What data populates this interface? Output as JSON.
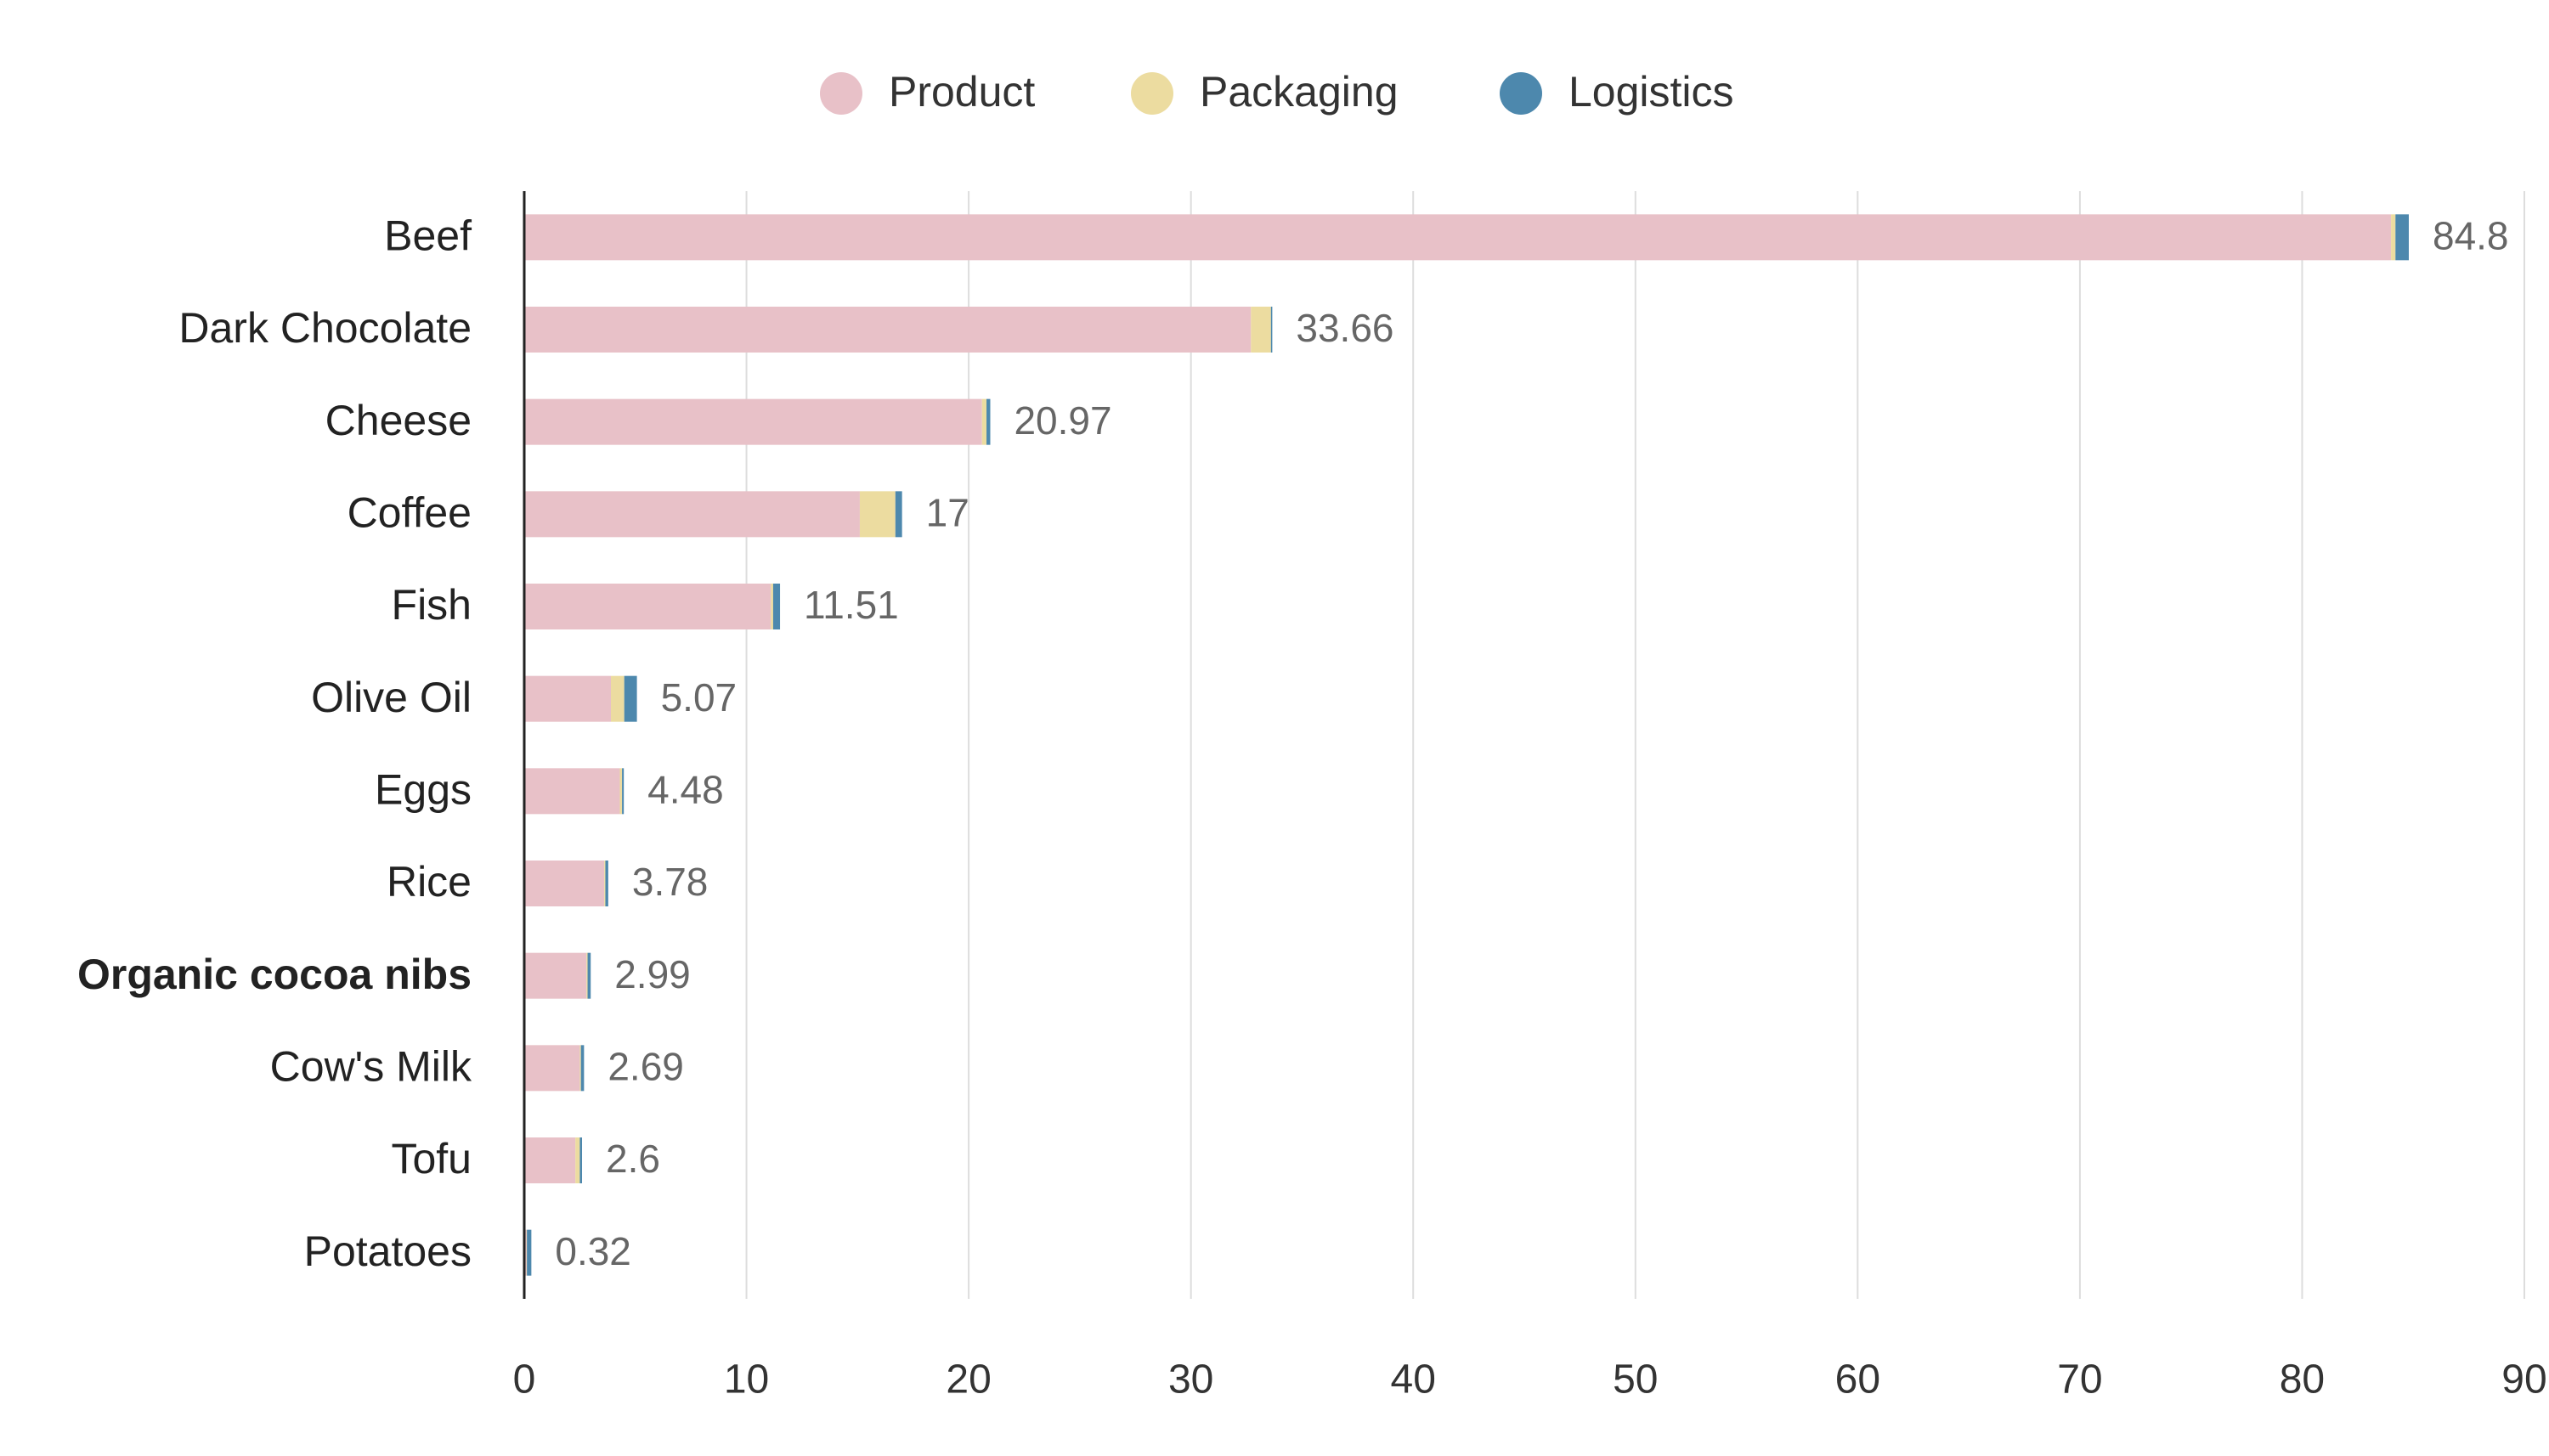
{
  "chart_data": {
    "type": "bar",
    "orientation": "horizontal",
    "stacked": true,
    "categories": [
      "Beef",
      "Dark Chocolate",
      "Cheese",
      "Coffee",
      "Fish",
      "Olive Oil",
      "Eggs",
      "Rice",
      "Organic cocoa nibs",
      "Cow's Milk",
      "Tofu",
      "Potatoes"
    ],
    "bold_category": 8,
    "series": [
      {
        "name": "Product",
        "color": "#e8c1c8",
        "values": [
          84.0,
          32.7,
          20.6,
          15.1,
          11.1,
          3.9,
          4.3,
          3.6,
          2.8,
          2.5,
          2.3,
          0.1
        ]
      },
      {
        "name": "Packaging",
        "color": "#ecdca0",
        "values": [
          0.2,
          0.9,
          0.2,
          1.6,
          0.1,
          0.6,
          0.1,
          0.05,
          0.05,
          0.05,
          0.2,
          0.02
        ]
      },
      {
        "name": "Logistics",
        "color": "#4d88ad",
        "values": [
          0.6,
          0.06,
          0.17,
          0.3,
          0.31,
          0.57,
          0.08,
          0.13,
          0.14,
          0.14,
          0.1,
          0.2
        ]
      }
    ],
    "totals": [
      84.8,
      33.66,
      20.97,
      17,
      11.51,
      5.07,
      4.48,
      3.78,
      2.99,
      2.69,
      2.6,
      0.32
    ],
    "xlim": [
      0,
      90
    ],
    "xticks": [
      0,
      10,
      20,
      30,
      40,
      50,
      60,
      70,
      80,
      90
    ],
    "grid": true,
    "legend": "top"
  }
}
